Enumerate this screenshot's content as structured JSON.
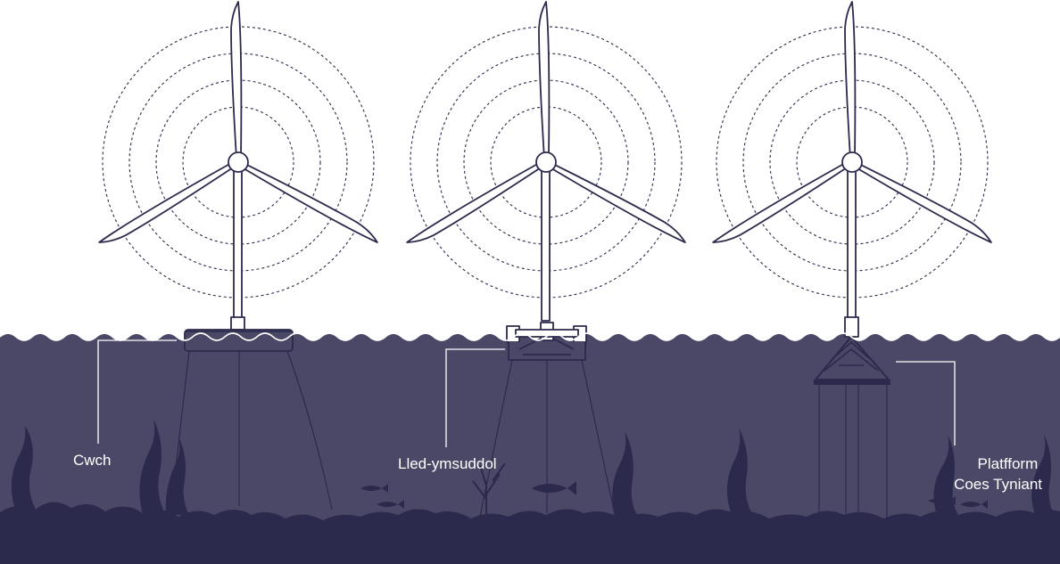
{
  "colors": {
    "sea": "#4a4866",
    "seabed": "#2b2a4c",
    "line": "#2b2a4c",
    "label": "#ffffff"
  },
  "turbines": [
    {
      "id": "spar",
      "label_lines": [
        "Cwch"
      ]
    },
    {
      "id": "semi-submersible",
      "label_lines": [
        "Lled-ymsuddol"
      ]
    },
    {
      "id": "tension-leg",
      "label_lines": [
        "Platfform",
        "Coes Tyniant"
      ]
    }
  ]
}
